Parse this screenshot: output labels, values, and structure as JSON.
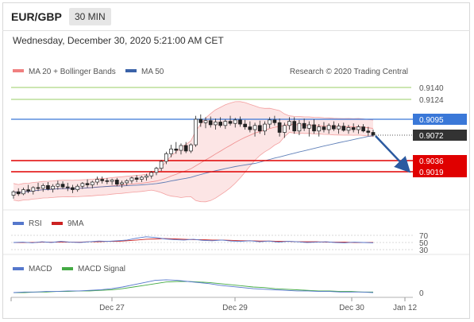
{
  "header": {
    "symbol": "EUR/GBP",
    "timeframe": "30 MIN",
    "datetime": "Wednesday, December 30, 2020 5:21:00 AM CET"
  },
  "legend": {
    "bollinger_label": "MA 20 + Bollinger Bands",
    "ma50_label": "MA 50",
    "copyright": "Research © 2020 Trading Central"
  },
  "colors": {
    "bollinger": "#f08080",
    "ma50": "#3a62a8",
    "green_level": "#99cc66",
    "blue_level": "#3a78d8",
    "red_level": "#e00000",
    "candle": "#222222",
    "rsi": "#5577cc",
    "rsi_ma": "#cc2222",
    "macd": "#5577cc",
    "macd_signal": "#44aa44",
    "arrow": "#2c5aa0"
  },
  "levels": [
    {
      "value": 0.914,
      "label": "0.9140",
      "kind": "green"
    },
    {
      "value": 0.9124,
      "label": "0.9124",
      "kind": "green"
    },
    {
      "value": 0.9095,
      "label": "0.9095",
      "kind": "blue"
    },
    {
      "value": 0.9072,
      "label": "0.9072",
      "kind": "current"
    },
    {
      "value": 0.9036,
      "label": "0.9036",
      "kind": "red"
    },
    {
      "value": 0.9019,
      "label": "0.9019",
      "kind": "red"
    }
  ],
  "rsi_panel": {
    "rsi_label": "RSI",
    "ma_label": "9MA",
    "ticks": [
      "70",
      "50",
      "30"
    ]
  },
  "macd_panel": {
    "macd_label": "MACD",
    "signal_label": "MACD Signal",
    "ticks": [
      "0"
    ]
  },
  "x_labels": [
    "Dec 27",
    "Dec 29",
    "Dec 30",
    "Jan 12"
  ],
  "chart_data": {
    "type": "line",
    "title": "EUR/GBP 30 MIN",
    "x_ticks": [
      "Dec 27",
      "Dec 29",
      "Dec 30",
      "Jan 12"
    ],
    "price_series": {
      "name": "EUR/GBP",
      "candles": [
        [
          0.8985,
          0.8992,
          0.898,
          0.899
        ],
        [
          0.899,
          0.8995,
          0.8984,
          0.8987
        ],
        [
          0.8987,
          0.8996,
          0.8985,
          0.8993
        ],
        [
          0.8993,
          0.9,
          0.8988,
          0.8991
        ],
        [
          0.8991,
          0.8998,
          0.8986,
          0.8996
        ],
        [
          0.8996,
          0.9003,
          0.8991,
          0.8995
        ],
        [
          0.8995,
          0.9002,
          0.899,
          0.8999
        ],
        [
          0.8999,
          0.9004,
          0.8992,
          0.8994
        ],
        [
          0.8994,
          0.9001,
          0.8989,
          0.8998
        ],
        [
          0.8998,
          0.9006,
          0.8993,
          0.9001
        ],
        [
          0.9001,
          0.9005,
          0.8994,
          0.8997
        ],
        [
          0.8997,
          0.9003,
          0.8991,
          0.8996
        ],
        [
          0.8996,
          0.9,
          0.8988,
          0.8993
        ],
        [
          0.8993,
          0.9001,
          0.899,
          0.8998
        ],
        [
          0.8998,
          0.9004,
          0.8994,
          0.9002
        ],
        [
          0.9002,
          0.9008,
          0.8996,
          0.9
        ],
        [
          0.9,
          0.9006,
          0.8995,
          0.9004
        ],
        [
          0.9004,
          0.9012,
          0.9,
          0.9008
        ],
        [
          0.9008,
          0.9012,
          0.9002,
          0.9006
        ],
        [
          0.9006,
          0.901,
          0.9001,
          0.9005
        ],
        [
          0.9005,
          0.9009,
          0.9,
          0.9007
        ],
        [
          0.9007,
          0.901,
          0.8998,
          0.9001
        ],
        [
          0.9001,
          0.9006,
          0.8996,
          0.9003
        ],
        [
          0.9003,
          0.9008,
          0.8999,
          0.9006
        ],
        [
          0.9006,
          0.9012,
          0.9002,
          0.901
        ],
        [
          0.901,
          0.9014,
          0.9004,
          0.9008
        ],
        [
          0.9008,
          0.9013,
          0.9004,
          0.9011
        ],
        [
          0.9011,
          0.9016,
          0.9006,
          0.9013
        ],
        [
          0.9013,
          0.902,
          0.9009,
          0.9018
        ],
        [
          0.9018,
          0.9026,
          0.9014,
          0.9024
        ],
        [
          0.9024,
          0.9036,
          0.902,
          0.9034
        ],
        [
          0.9034,
          0.9048,
          0.903,
          0.9045
        ],
        [
          0.9045,
          0.9058,
          0.904,
          0.9052
        ],
        [
          0.9052,
          0.9062,
          0.9045,
          0.905
        ],
        [
          0.905,
          0.906,
          0.9044,
          0.9057
        ],
        [
          0.9057,
          0.9062,
          0.9046,
          0.9049
        ],
        [
          0.9049,
          0.906,
          0.9046,
          0.9058
        ],
        [
          0.9058,
          0.91,
          0.9055,
          0.9095
        ],
        [
          0.9095,
          0.9102,
          0.9084,
          0.909
        ],
        [
          0.909,
          0.9098,
          0.9082,
          0.9093
        ],
        [
          0.9093,
          0.9099,
          0.9083,
          0.9087
        ],
        [
          0.9087,
          0.9096,
          0.908,
          0.9091
        ],
        [
          0.9091,
          0.9098,
          0.9083,
          0.9086
        ],
        [
          0.9086,
          0.9095,
          0.9081,
          0.9092
        ],
        [
          0.9092,
          0.91,
          0.9086,
          0.9089
        ],
        [
          0.9089,
          0.9097,
          0.9083,
          0.9094
        ],
        [
          0.9094,
          0.9099,
          0.9084,
          0.9088
        ],
        [
          0.9088,
          0.9094,
          0.908,
          0.9084
        ],
        [
          0.9084,
          0.9092,
          0.9076,
          0.908
        ],
        [
          0.908,
          0.909,
          0.907,
          0.9086
        ],
        [
          0.9086,
          0.9093,
          0.9074,
          0.9078
        ],
        [
          0.9078,
          0.9092,
          0.9072,
          0.9088
        ],
        [
          0.9088,
          0.9098,
          0.9082,
          0.9094
        ],
        [
          0.9094,
          0.91,
          0.9086,
          0.909
        ],
        [
          0.909,
          0.9096,
          0.907,
          0.9076
        ],
        [
          0.9076,
          0.909,
          0.9068,
          0.9086
        ],
        [
          0.9086,
          0.9098,
          0.908,
          0.9092
        ],
        [
          0.9092,
          0.9098,
          0.9074,
          0.9078
        ],
        [
          0.9078,
          0.9094,
          0.9072,
          0.9089
        ],
        [
          0.9089,
          0.9096,
          0.9078,
          0.9082
        ],
        [
          0.9082,
          0.9092,
          0.907,
          0.9087
        ],
        [
          0.9087,
          0.9095,
          0.9074,
          0.9078
        ],
        [
          0.9078,
          0.9088,
          0.907,
          0.9084
        ],
        [
          0.9084,
          0.9091,
          0.9076,
          0.908
        ],
        [
          0.908,
          0.9089,
          0.9074,
          0.9086
        ],
        [
          0.9086,
          0.9092,
          0.9078,
          0.9081
        ],
        [
          0.9081,
          0.9089,
          0.9074,
          0.9085
        ],
        [
          0.9085,
          0.909,
          0.9077,
          0.9079
        ],
        [
          0.9079,
          0.9087,
          0.9074,
          0.9083
        ],
        [
          0.9083,
          0.9089,
          0.9076,
          0.908
        ],
        [
          0.908,
          0.9087,
          0.9074,
          0.9084
        ],
        [
          0.9084,
          0.9088,
          0.9076,
          0.9078
        ],
        [
          0.9078,
          0.9084,
          0.9071,
          0.9076
        ],
        [
          0.9076,
          0.908,
          0.907,
          0.9072
        ]
      ]
    },
    "rsi": {
      "name": "RSI",
      "range": [
        30,
        70
      ],
      "values": [
        50,
        51,
        49,
        52,
        50,
        53,
        51,
        50,
        52,
        54,
        53,
        55,
        57,
        62,
        66,
        64,
        60,
        58,
        57,
        59,
        56,
        55,
        57,
        54,
        53,
        55,
        52,
        54,
        51,
        53,
        52,
        50,
        51,
        52,
        50,
        49,
        51,
        50,
        49
      ]
    },
    "rsi_ma": {
      "name": "9MA",
      "values": [
        50,
        50,
        50,
        51,
        51,
        51,
        51,
        51,
        52,
        52,
        53,
        53,
        55,
        57,
        59,
        60,
        61,
        60,
        59,
        58,
        58,
        57,
        57,
        56,
        55,
        55,
        54,
        54,
        53,
        53,
        52,
        52,
        52,
        51,
        51,
        51,
        50,
        50,
        50
      ]
    },
    "macd": {
      "name": "MACD",
      "values": [
        0,
        0.1,
        0.1,
        0.2,
        0.2,
        0.3,
        0.3,
        0.4,
        0.5,
        0.7,
        1.0,
        1.4,
        1.8,
        2.2,
        2.3,
        2.2,
        2.0,
        1.8,
        1.6,
        1.3,
        1.1,
        0.9,
        0.7,
        0.6,
        0.5,
        0.4,
        0.3,
        0.3,
        0.2,
        0.2,
        0.1,
        0.1,
        0.1,
        0.0
      ]
    },
    "macd_signal": {
      "name": "MACD Signal",
      "values": [
        0,
        0.0,
        0.1,
        0.1,
        0.2,
        0.2,
        0.3,
        0.3,
        0.4,
        0.5,
        0.7,
        1.0,
        1.3,
        1.6,
        1.9,
        2.0,
        2.0,
        1.9,
        1.8,
        1.6,
        1.4,
        1.2,
        1.0,
        0.9,
        0.7,
        0.6,
        0.5,
        0.4,
        0.3,
        0.3,
        0.2,
        0.2,
        0.1,
        0.1
      ]
    }
  }
}
